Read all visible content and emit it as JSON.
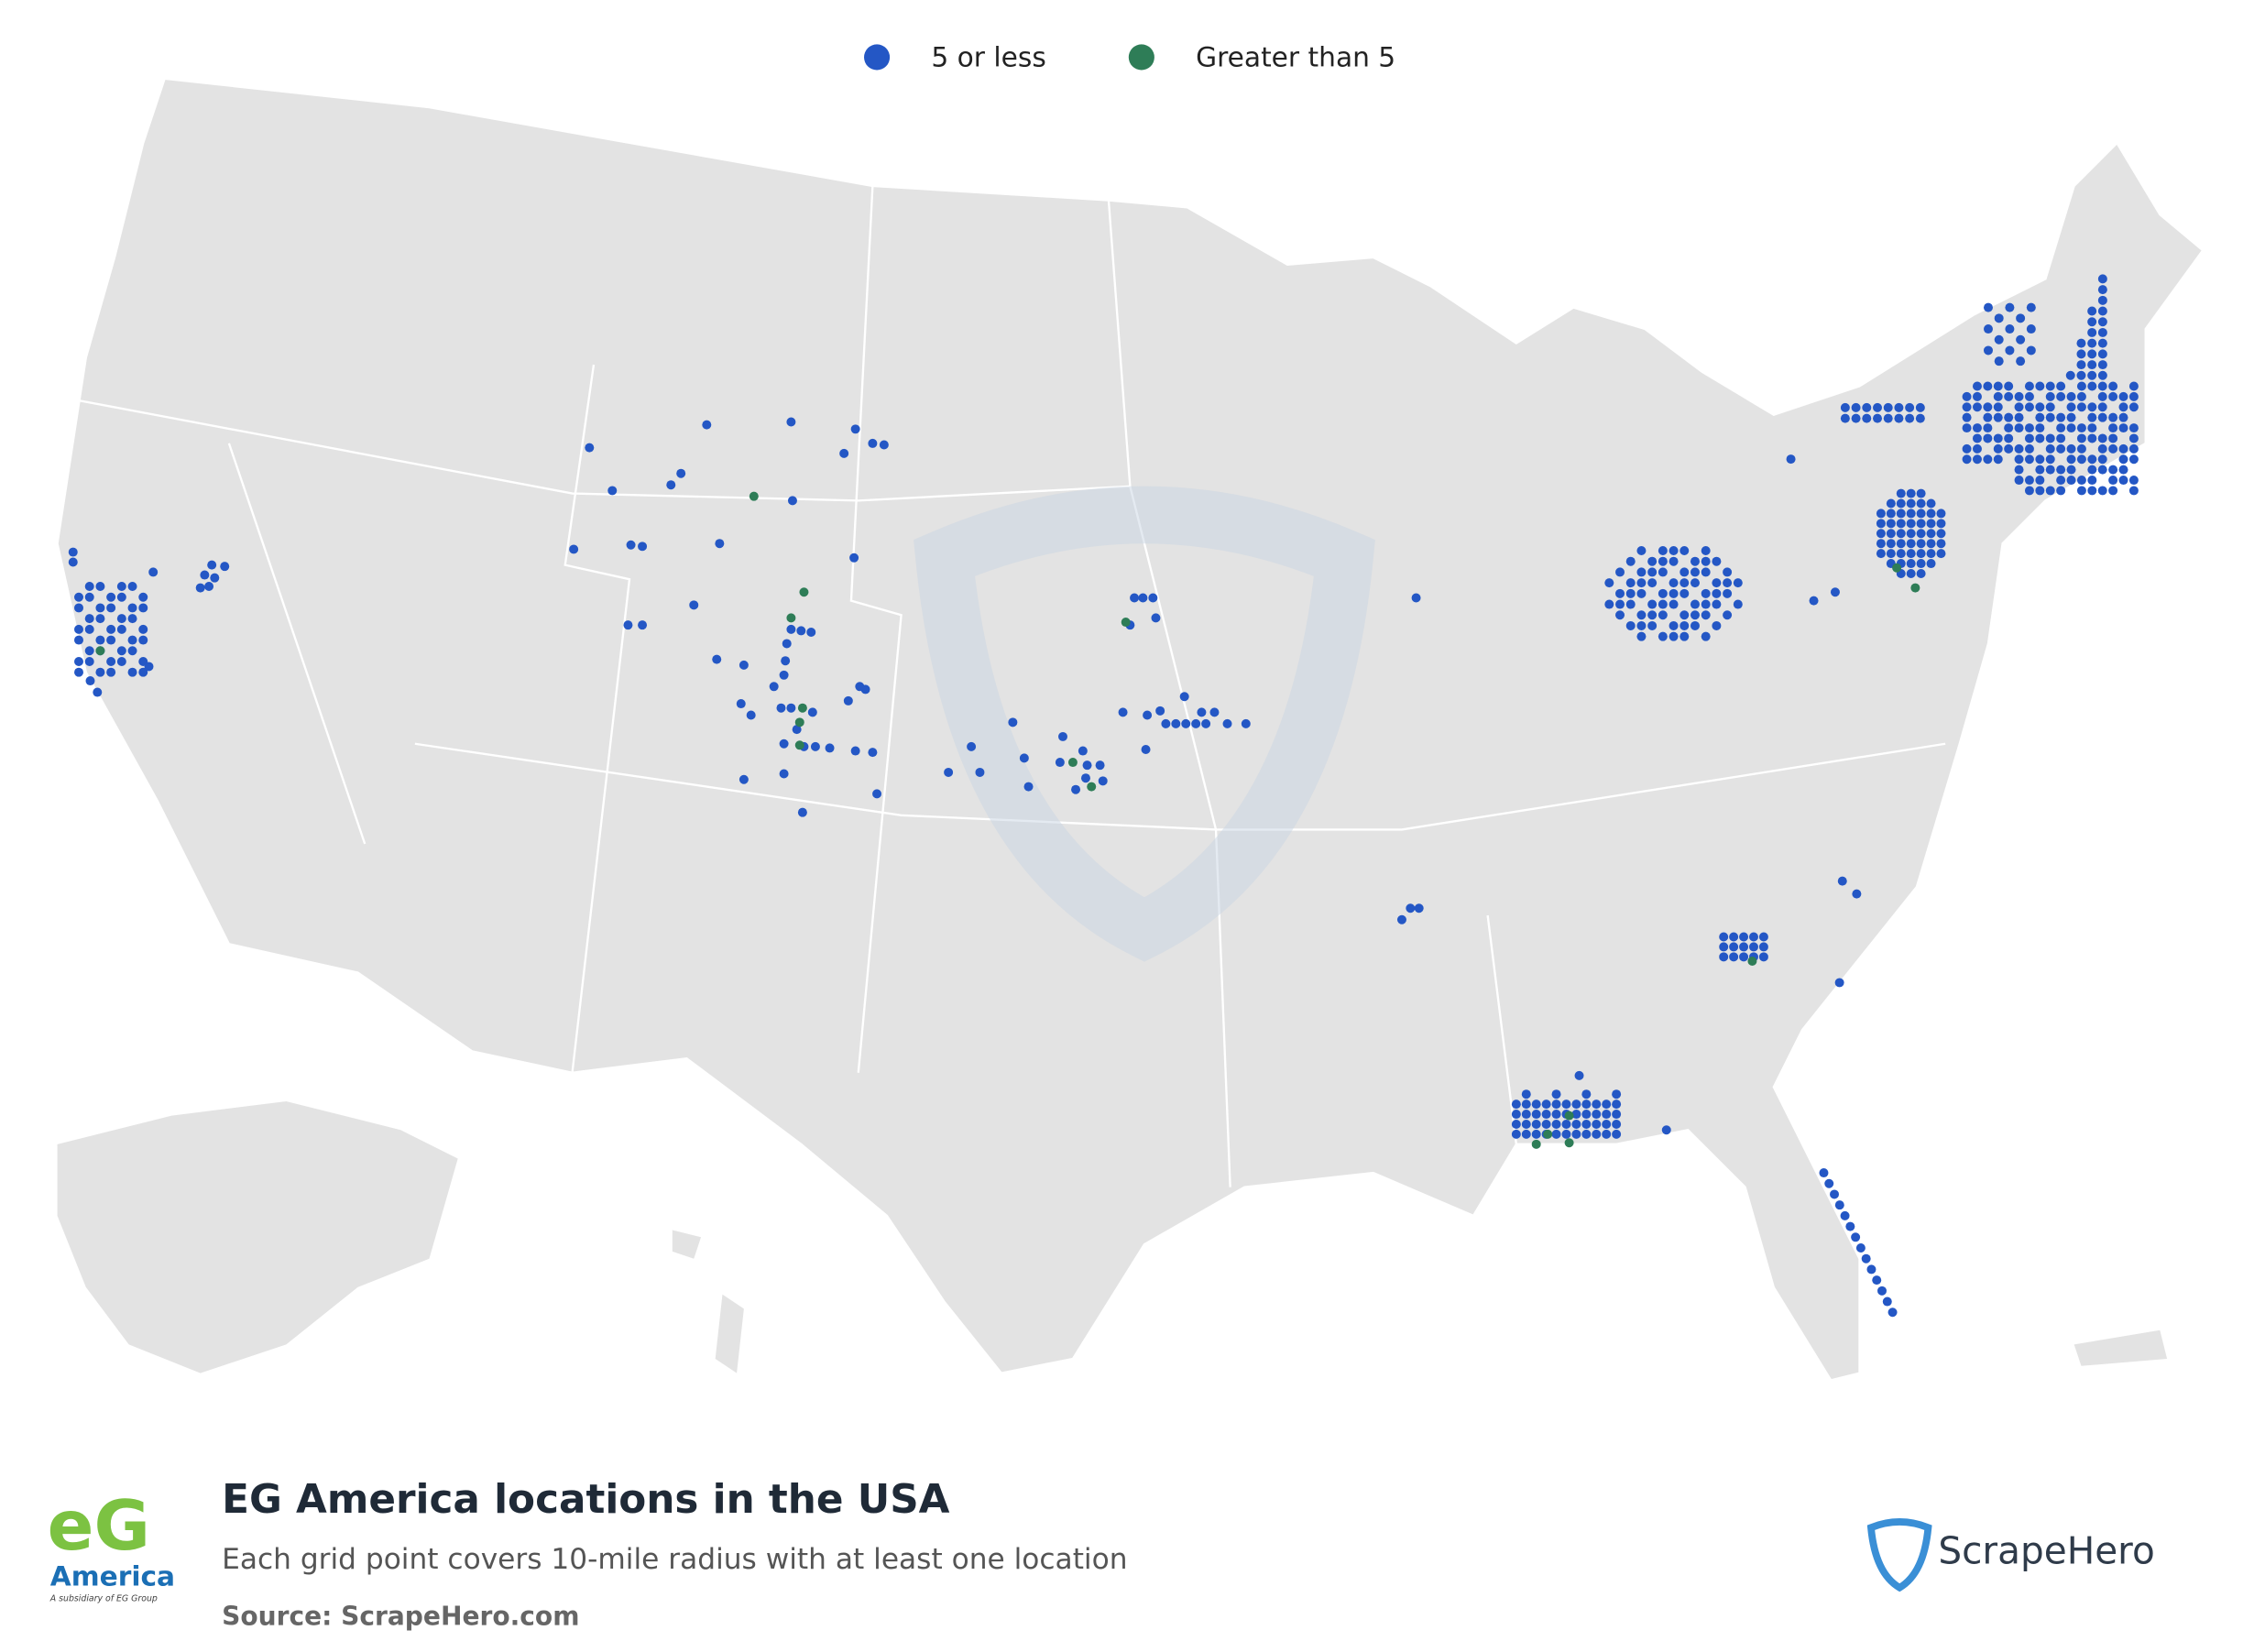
{
  "legend": {
    "items": [
      {
        "label": "5 or less",
        "color": "#2457c5"
      },
      {
        "label": "Greater than 5",
        "color": "#2e7d57"
      }
    ]
  },
  "title": "EG America locations in the USA",
  "subtitle": "Each grid point covers 10-mile radius with at least one location",
  "source": "Source: ScrapeHero.com",
  "logo": {
    "mark": "eG",
    "name": "America",
    "tagline": "A subsidiary of EG Group"
  },
  "brand": "ScrapeHero"
}
